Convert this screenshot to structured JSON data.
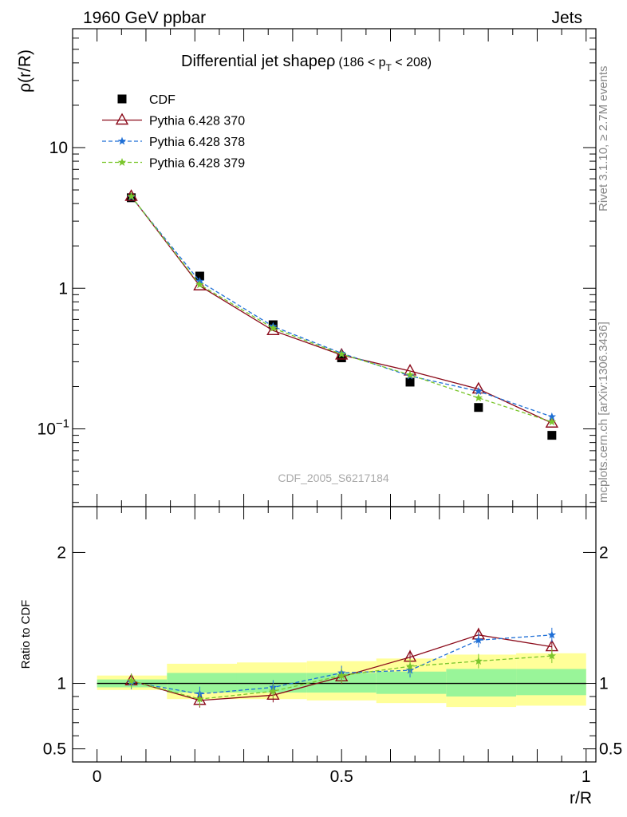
{
  "header": {
    "left": "1960 GeV ppbar",
    "right": "Jets"
  },
  "side_labels": {
    "rivet": "Rivet 3.1.10, ≥ 2.7M events",
    "mcplots": "mcplots.cern.ch [arXiv:1306.3436]"
  },
  "chart_data": [
    {
      "type": "line",
      "title": "Differential jet shapeρ",
      "subtitle": "(186 < p_T < 208)",
      "title_subtitle_parts": {
        "pre": "(186 < p",
        "sub": "T",
        "post": " < 208)"
      },
      "ylabel": "ρ(r/R)",
      "xlabel": "",
      "yscale": "log",
      "ylim": [
        0.028,
        70
      ],
      "xlim": [
        -0.05,
        1.02
      ],
      "yticks": [
        {
          "value": 0.1,
          "label": "10",
          "sup": "−1"
        },
        {
          "value": 1,
          "label": "1",
          "sup": ""
        },
        {
          "value": 10,
          "label": "10",
          "sup": ""
        }
      ],
      "watermark": "CDF_2005_S6217184",
      "legend_position": "top-left",
      "x": [
        0.07,
        0.21,
        0.36,
        0.5,
        0.64,
        0.78,
        0.93
      ],
      "series": [
        {
          "name": "CDF",
          "color": "#000000",
          "marker": "square",
          "line": "none",
          "values": [
            4.4,
            1.22,
            0.55,
            0.32,
            0.215,
            0.142,
            0.09
          ]
        },
        {
          "name": "Pythia 6.428 370",
          "color": "#8b0a1a",
          "marker": "open-triangle",
          "line": "solid",
          "values": [
            4.5,
            1.04,
            0.5,
            0.335,
            0.258,
            0.192,
            0.11
          ]
        },
        {
          "name": "Pythia 6.428 378",
          "color": "#1f6fd6",
          "marker": "star",
          "line": "dashed",
          "values": [
            4.46,
            1.12,
            0.535,
            0.345,
            0.238,
            0.185,
            0.122
          ]
        },
        {
          "name": "Pythia 6.428 379",
          "color": "#7bc62d",
          "marker": "star",
          "line": "dashed",
          "values": [
            4.5,
            1.06,
            0.52,
            0.34,
            0.242,
            0.166,
            0.112
          ]
        }
      ]
    },
    {
      "type": "line",
      "title": "",
      "ylabel": "Ratio to CDF",
      "xlabel": "r/R",
      "ylim": [
        0.4,
        2.35
      ],
      "xlim": [
        -0.05,
        1.02
      ],
      "yticks": [
        {
          "value": 0.5,
          "label": "0.5"
        },
        {
          "value": 1,
          "label": "1"
        },
        {
          "value": 2,
          "label": "2"
        }
      ],
      "xticks": [
        {
          "value": 0,
          "label": "0"
        },
        {
          "value": 0.5,
          "label": "0.5"
        },
        {
          "value": 1,
          "label": "1"
        }
      ],
      "reference_line": 1,
      "bands": [
        {
          "x0": 0.0,
          "x1": 0.143,
          "green": [
            0.97,
            1.03
          ],
          "yellow": [
            0.95,
            1.06
          ]
        },
        {
          "x0": 0.143,
          "x1": 0.286,
          "green": [
            0.93,
            1.08
          ],
          "yellow": [
            0.88,
            1.15
          ]
        },
        {
          "x0": 0.286,
          "x1": 0.429,
          "green": [
            0.93,
            1.08
          ],
          "yellow": [
            0.88,
            1.16
          ]
        },
        {
          "x0": 0.429,
          "x1": 0.571,
          "green": [
            0.93,
            1.08
          ],
          "yellow": [
            0.87,
            1.17
          ]
        },
        {
          "x0": 0.571,
          "x1": 0.714,
          "green": [
            0.92,
            1.09
          ],
          "yellow": [
            0.85,
            1.19
          ]
        },
        {
          "x0": 0.714,
          "x1": 0.857,
          "green": [
            0.9,
            1.11
          ],
          "yellow": [
            0.82,
            1.22
          ]
        },
        {
          "x0": 0.857,
          "x1": 1.0,
          "green": [
            0.91,
            1.11
          ],
          "yellow": [
            0.83,
            1.23
          ]
        }
      ],
      "x": [
        0.07,
        0.21,
        0.36,
        0.5,
        0.64,
        0.78,
        0.93
      ],
      "series": [
        {
          "name": "Pythia 6.428 370",
          "color": "#8b0a1a",
          "marker": "open-triangle",
          "line": "solid",
          "values": [
            1.02,
            0.87,
            0.91,
            1.05,
            1.2,
            1.37,
            1.28
          ]
        },
        {
          "name": "Pythia 6.428 378",
          "color": "#1f6fd6",
          "marker": "star",
          "line": "dashed",
          "values": [
            1.01,
            0.92,
            0.97,
            1.08,
            1.1,
            1.33,
            1.37
          ]
        },
        {
          "name": "Pythia 6.428 379",
          "color": "#7bc62d",
          "marker": "star",
          "line": "dashed",
          "values": [
            1.02,
            0.88,
            0.94,
            1.06,
            1.13,
            1.17,
            1.21
          ]
        }
      ]
    }
  ]
}
